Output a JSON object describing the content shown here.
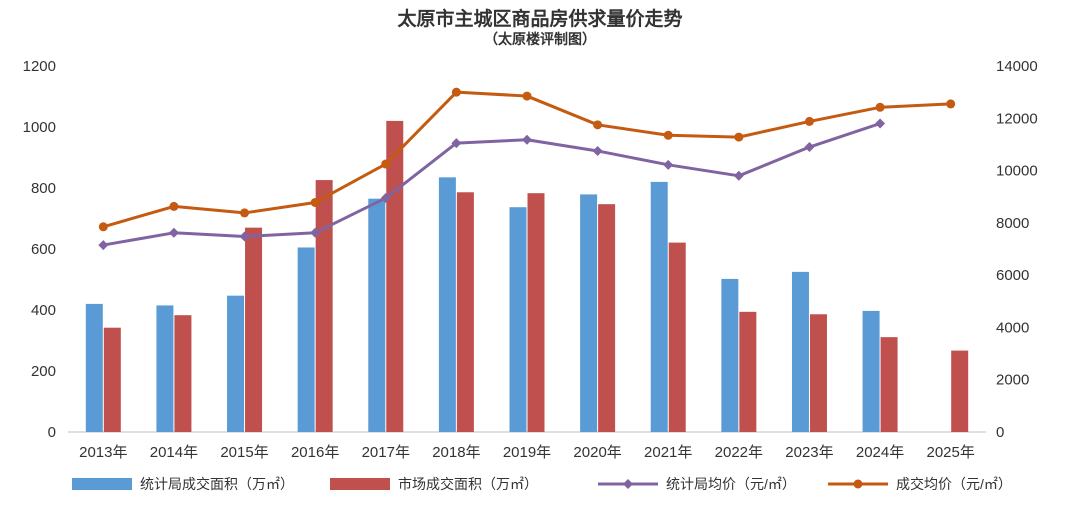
{
  "chart_data": {
    "type": "bar+line",
    "title": "太原市主城区商品房供求量价走势",
    "subtitle": "（太原楼评制图）",
    "categories": [
      "2013年",
      "2014年",
      "2015年",
      "2016年",
      "2017年",
      "2018年",
      "2019年",
      "2020年",
      "2021年",
      "2022年",
      "2023年",
      "2024年",
      "2025年"
    ],
    "y_left": {
      "min": 0,
      "max": 1200,
      "ticks": [
        0,
        200,
        400,
        600,
        800,
        1000,
        1200
      ]
    },
    "y_right": {
      "min": 0,
      "max": 14000,
      "ticks": [
        0,
        2000,
        4000,
        6000,
        8000,
        10000,
        12000,
        14000
      ]
    },
    "series": [
      {
        "name": "统计局成交面积（万㎡）",
        "type": "bar",
        "axis": "left",
        "color": "#5B9BD5",
        "values": [
          420,
          415,
          447,
          605,
          765,
          835,
          737,
          779,
          820,
          502,
          525,
          397,
          null
        ]
      },
      {
        "name": "市场成交面积（万㎡）",
        "type": "bar",
        "axis": "left",
        "color": "#C0504D",
        "values": [
          342,
          383,
          670,
          826,
          1020,
          786,
          783,
          747,
          621,
          394,
          386,
          311,
          267
        ]
      },
      {
        "name": "统计局均价（元/㎡）",
        "type": "line",
        "axis": "right",
        "color": "#8064A2",
        "values": [
          7150,
          7620,
          7480,
          7620,
          8950,
          11050,
          11180,
          10750,
          10220,
          9800,
          10900,
          11800,
          null
        ]
      },
      {
        "name": "成交均价（元/㎡）",
        "type": "line",
        "axis": "right",
        "color": "#C55A11",
        "values": [
          7850,
          8630,
          8380,
          8780,
          10250,
          13000,
          12850,
          11750,
          11350,
          11280,
          11880,
          12420,
          12550
        ]
      }
    ],
    "legend_position": "bottom",
    "grid": false
  }
}
